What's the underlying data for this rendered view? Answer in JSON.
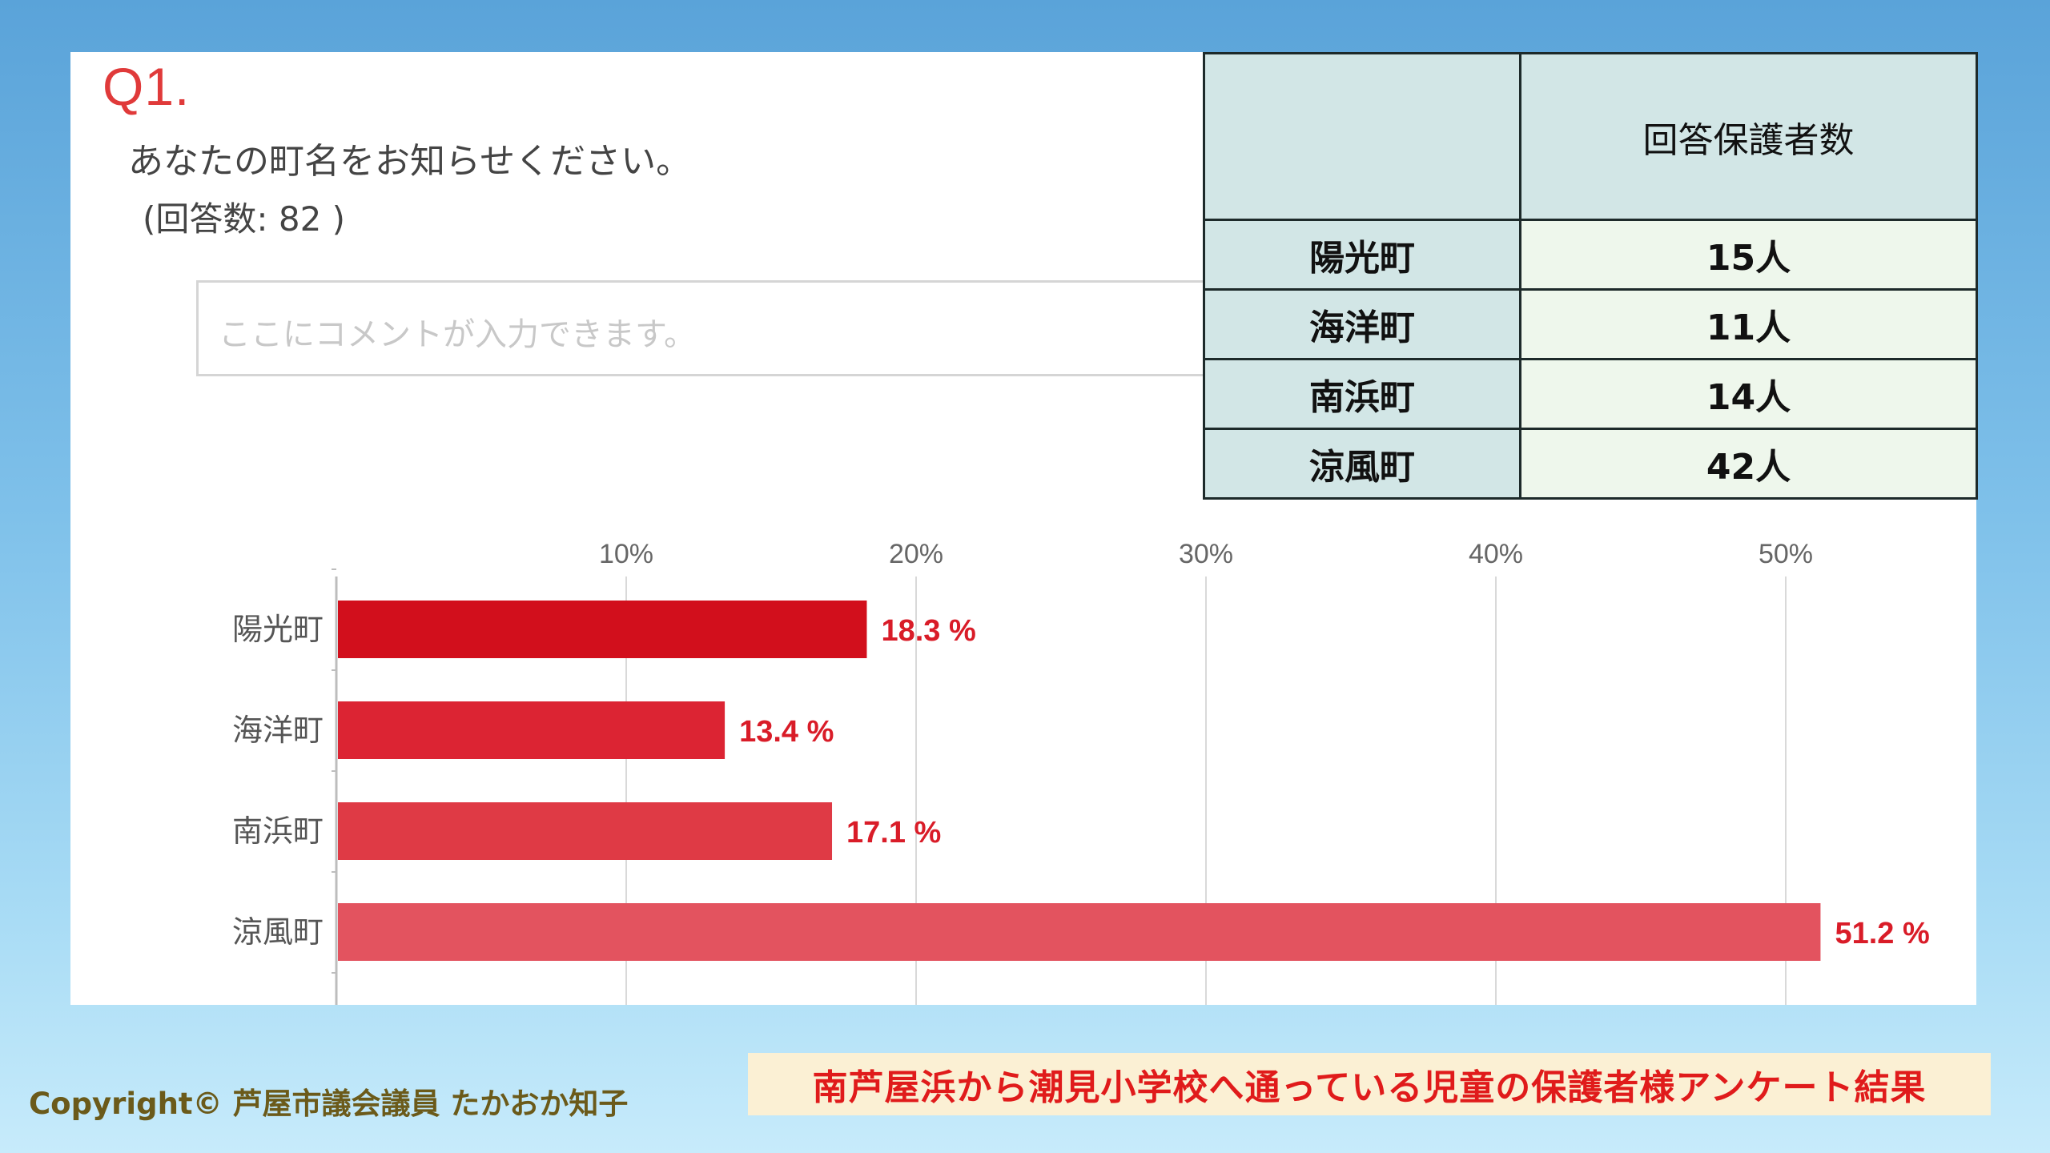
{
  "question": {
    "label": "Q1.",
    "text": "あなたの町名をお知らせください。",
    "count": "(回答数: 82 )",
    "comment_placeholder": "ここにコメントが入力できます。"
  },
  "table": {
    "header": "回答保護者数",
    "rows": [
      {
        "town": "陽光町",
        "count": "15人"
      },
      {
        "town": "海洋町",
        "count": "11人"
      },
      {
        "town": "南浜町",
        "count": "14人"
      },
      {
        "town": "涼風町",
        "count": "42人"
      }
    ]
  },
  "chart_data": {
    "type": "bar",
    "orientation": "horizontal",
    "categories": [
      "陽光町",
      "海洋町",
      "南浜町",
      "涼風町"
    ],
    "values": [
      18.3,
      13.4,
      17.1,
      51.2
    ],
    "value_labels": [
      "18.3 %",
      "13.4 %",
      "17.1 %",
      "51.2 %"
    ],
    "xticks": [
      "10%",
      "20%",
      "30%",
      "40%",
      "50%"
    ],
    "xtick_values": [
      10,
      20,
      30,
      40,
      50
    ],
    "xlim": [
      0,
      55
    ],
    "grid": true,
    "colors": [
      "#d20f1c",
      "#dc2433",
      "#df3a45",
      "#e3535f"
    ],
    "label_color": "#d91c28"
  },
  "footer": {
    "copyright": "Copyright© 芦屋市議会議員 たかおか知子",
    "title": "南芦屋浜から潮見小学校へ通っている児童の保護者様アンケート結果"
  }
}
